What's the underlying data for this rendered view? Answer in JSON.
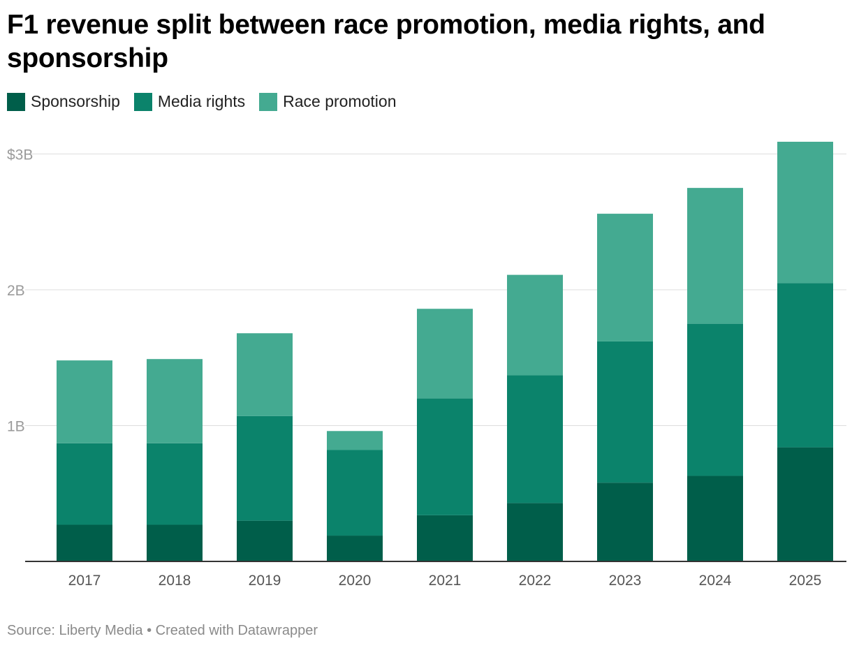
{
  "title": "F1 revenue split between race promotion, media rights, and sponsorship",
  "legend": {
    "sponsorship": "Sponsorship",
    "media": "Media rights",
    "race": "Race promotion"
  },
  "colors": {
    "sponsorship": "#005e4a",
    "media": "#0b836b",
    "race": "#44aa91",
    "grid": "#dddddd",
    "axis": "#333333",
    "tick": "#9a9a9a"
  },
  "footer": "Source: Liberty Media • Created with Datawrapper",
  "chart_data": {
    "type": "bar",
    "stacked": true,
    "categories": [
      "2017",
      "2018",
      "2019",
      "2020",
      "2021",
      "2022",
      "2023",
      "2024",
      "2025"
    ],
    "series": [
      {
        "name": "Sponsorship",
        "values": [
          0.27,
          0.27,
          0.3,
          0.19,
          0.34,
          0.43,
          0.58,
          0.63,
          0.84
        ]
      },
      {
        "name": "Media rights",
        "values": [
          0.6,
          0.6,
          0.77,
          0.63,
          0.86,
          0.94,
          1.04,
          1.12,
          1.21
        ]
      },
      {
        "name": "Race promotion",
        "values": [
          0.61,
          0.62,
          0.61,
          0.14,
          0.66,
          0.74,
          0.94,
          1.0,
          1.04
        ]
      }
    ],
    "yticks": [
      {
        "value": 1,
        "label": "1B"
      },
      {
        "value": 2,
        "label": "2B"
      },
      {
        "value": 3,
        "label": "$3B"
      }
    ],
    "ylim": [
      0,
      3.1
    ],
    "grid": true,
    "legend_position": "top-left"
  }
}
